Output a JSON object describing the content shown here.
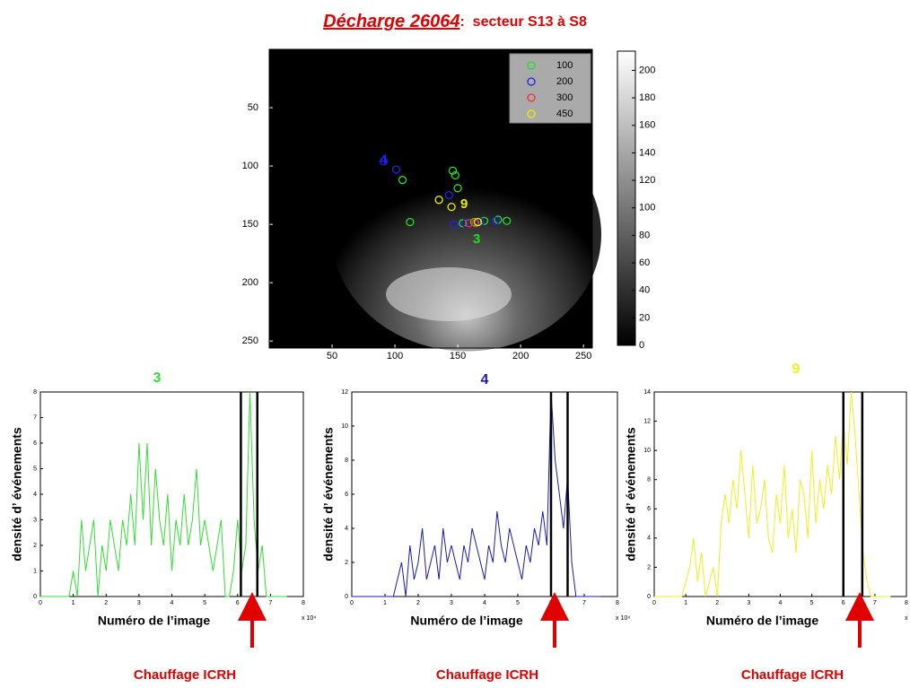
{
  "title": "Décharge 26064",
  "title_suffix": ":  secteur S13 à S8",
  "chart_data": [
    {
      "type": "scatter",
      "xlim": [
        0,
        257
      ],
      "ylim": [
        256,
        0
      ],
      "xticks": [
        50,
        100,
        150,
        200,
        250
      ],
      "yticks": [
        50,
        100,
        150,
        200,
        250
      ],
      "series": [
        {
          "name": "100",
          "color": "#22dd22",
          "x": [
            106,
            146,
            148,
            150,
            112,
            154,
            163,
            171,
            182,
            189
          ],
          "y": [
            112,
            104,
            108,
            119,
            148,
            149,
            148,
            147,
            146,
            147
          ]
        },
        {
          "name": "200",
          "color": "#2020ee",
          "x": [
            91,
            101,
            143,
            147,
            156,
            168,
            180
          ],
          "y": [
            96,
            103,
            125,
            150,
            149,
            148,
            147
          ]
        },
        {
          "name": "300",
          "color": "#ee3030",
          "x": [
            159,
            164
          ],
          "y": [
            149,
            149
          ]
        },
        {
          "name": "450",
          "color": "#eeee00",
          "x": [
            135,
            145,
            166
          ],
          "y": [
            129,
            135,
            148
          ]
        }
      ],
      "point_labels": [
        {
          "text": "4",
          "x": 91,
          "y": 95,
          "color": "#2020ee"
        },
        {
          "text": "9",
          "x": 155,
          "y": 133,
          "color": "#eeee00"
        },
        {
          "text": "3",
          "x": 165,
          "y": 163,
          "color": "#22dd22"
        }
      ],
      "colorbar": {
        "clim": [
          0,
          214
        ],
        "ticks": [
          0,
          20,
          40,
          60,
          80,
          100,
          120,
          140,
          160,
          180,
          200
        ]
      }
    },
    {
      "type": "line",
      "title": "3",
      "color": "#33dd33",
      "xlabel": "Numéro de l’image",
      "ylabel": "densité d’ événements",
      "offset_text": "x 10⁴",
      "annotation": "Chauffage ICRH",
      "xlim": [
        0,
        8
      ],
      "xticks": [
        0,
        1,
        2,
        3,
        4,
        5,
        6,
        7,
        8
      ],
      "ylim": [
        0,
        8
      ],
      "yticks": [
        0,
        1,
        2,
        3,
        4,
        5,
        6,
        7,
        8
      ],
      "vlines": [
        6.1,
        6.6
      ],
      "x": [
        0,
        0.125,
        0.25,
        0.375,
        0.5,
        0.625,
        0.75,
        0.875,
        1,
        1.125,
        1.25,
        1.375,
        1.5,
        1.625,
        1.75,
        1.875,
        2,
        2.125,
        2.25,
        2.375,
        2.5,
        2.625,
        2.75,
        2.875,
        3,
        3.125,
        3.25,
        3.375,
        3.5,
        3.625,
        3.75,
        3.875,
        4,
        4.125,
        4.25,
        4.375,
        4.5,
        4.625,
        4.75,
        4.875,
        5,
        5.125,
        5.25,
        5.375,
        5.5,
        5.625,
        5.75,
        5.875,
        6,
        6.125,
        6.25,
        6.375,
        6.5,
        6.625,
        6.75,
        6.875,
        7,
        7.125,
        7.25,
        7.375,
        7.5
      ],
      "values": [
        0,
        0,
        0,
        0,
        0,
        0,
        0,
        0,
        1,
        0,
        3,
        1,
        2,
        3,
        0,
        2,
        1,
        3,
        2,
        1,
        3,
        2,
        4,
        2,
        6,
        3,
        6,
        2,
        5,
        3,
        2,
        4,
        1,
        3,
        2,
        4,
        2,
        3,
        5,
        2,
        3,
        2,
        1,
        2,
        3,
        0,
        0,
        1,
        3,
        1,
        2,
        8,
        3,
        1,
        2,
        0,
        0,
        0,
        0,
        0,
        0
      ]
    },
    {
      "type": "line",
      "title": "4",
      "color": "#1a1ab0",
      "xlabel": "Numéro de l’image",
      "ylabel": "densité d’ événements",
      "offset_text": "x 10⁴",
      "annotation": "Chauffage ICRH",
      "xlim": [
        0,
        8
      ],
      "xticks": [
        0,
        1,
        2,
        3,
        4,
        5,
        6,
        7,
        8
      ],
      "ylim": [
        0,
        12
      ],
      "yticks": [
        0,
        2,
        4,
        6,
        8,
        10,
        12
      ],
      "vlines": [
        6.0,
        6.5
      ],
      "x": [
        0,
        0.125,
        0.25,
        0.375,
        0.5,
        0.625,
        0.75,
        0.875,
        1,
        1.125,
        1.25,
        1.375,
        1.5,
        1.625,
        1.75,
        1.875,
        2,
        2.125,
        2.25,
        2.375,
        2.5,
        2.625,
        2.75,
        2.875,
        3,
        3.125,
        3.25,
        3.375,
        3.5,
        3.625,
        3.75,
        3.875,
        4,
        4.125,
        4.25,
        4.375,
        4.5,
        4.625,
        4.75,
        4.875,
        5,
        5.125,
        5.25,
        5.375,
        5.5,
        5.625,
        5.75,
        5.875,
        6,
        6.125,
        6.25,
        6.375,
        6.5,
        6.625,
        6.75,
        6.875,
        7,
        7.125,
        7.25,
        7.375,
        7.5
      ],
      "values": [
        0,
        0,
        0,
        0,
        0,
        0,
        0,
        0,
        0,
        0,
        0,
        1,
        2,
        0,
        3,
        1,
        2,
        4,
        1,
        2,
        3,
        1,
        4,
        2,
        3,
        2,
        1,
        3,
        2,
        4,
        3,
        2,
        1,
        3,
        2,
        5,
        3,
        2,
        4,
        3,
        2,
        1,
        3,
        2,
        4,
        3,
        5,
        3,
        12,
        8,
        6,
        4,
        7,
        2,
        0,
        0,
        0,
        0,
        0,
        0,
        0
      ]
    },
    {
      "type": "line",
      "title": "9",
      "color": "#eeee22",
      "xlabel": "Numéro de l’image",
      "ylabel": "densité d’ événements",
      "offset_text": "x 10⁴",
      "annotation": "Chauffage ICRH",
      "xlim": [
        0,
        8
      ],
      "xticks": [
        0,
        1,
        2,
        3,
        4,
        5,
        6,
        7,
        8
      ],
      "ylim": [
        0,
        14
      ],
      "yticks": [
        0,
        2,
        4,
        6,
        8,
        10,
        12,
        14
      ],
      "vlines": [
        6.0,
        6.6
      ],
      "x": [
        0,
        0.125,
        0.25,
        0.375,
        0.5,
        0.625,
        0.75,
        0.875,
        1,
        1.125,
        1.25,
        1.375,
        1.5,
        1.625,
        1.75,
        1.875,
        2,
        2.125,
        2.25,
        2.375,
        2.5,
        2.625,
        2.75,
        2.875,
        3,
        3.125,
        3.25,
        3.375,
        3.5,
        3.625,
        3.75,
        3.875,
        4,
        4.125,
        4.25,
        4.375,
        4.5,
        4.625,
        4.75,
        4.875,
        5,
        5.125,
        5.25,
        5.375,
        5.5,
        5.625,
        5.75,
        5.875,
        6,
        6.125,
        6.25,
        6.375,
        6.5,
        6.625,
        6.75,
        6.875,
        7,
        7.125,
        7.25,
        7.375,
        7.5
      ],
      "values": [
        0,
        0,
        0,
        0,
        0,
        0,
        0,
        0,
        1,
        2,
        4,
        1,
        3,
        0,
        1,
        2,
        0,
        5,
        7,
        5,
        8,
        6,
        10,
        7,
        4,
        9,
        5,
        6,
        8,
        4,
        3,
        7,
        5,
        9,
        4,
        6,
        3,
        8,
        7,
        4,
        10,
        5,
        8,
        6,
        9,
        7,
        11,
        8,
        12,
        9,
        14,
        11,
        7,
        3,
        1,
        0,
        0,
        0,
        0,
        0,
        0
      ]
    }
  ]
}
